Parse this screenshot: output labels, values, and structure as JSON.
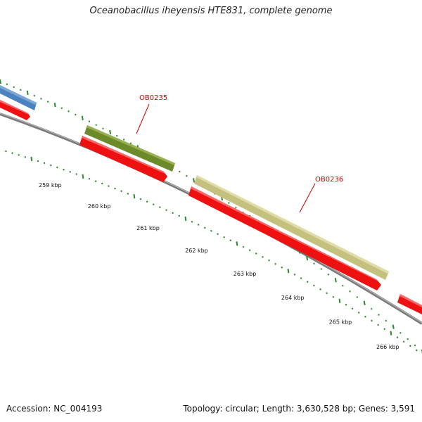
{
  "title": "Oceanobacillus iheyensis HTE831, complete genome",
  "footer": {
    "accession": "Accession: NC_004193",
    "info": "Topology: circular; Length: 3,630,528 bp; Genes: 3,591"
  },
  "ruler": [
    {
      "label": "259 kbp",
      "kbp": 259
    },
    {
      "label": "260 kbp",
      "kbp": 260
    },
    {
      "label": "261 kbp",
      "kbp": 261
    },
    {
      "label": "262 kbp",
      "kbp": 262
    },
    {
      "label": "263 kbp",
      "kbp": 263
    },
    {
      "label": "264 kbp",
      "kbp": 264
    },
    {
      "label": "265 kbp",
      "kbp": 265
    },
    {
      "label": "266 kbp",
      "kbp": 266
    }
  ],
  "gene_labels": [
    {
      "name": "OB0235",
      "color": "#cc0000"
    },
    {
      "name": "OB0236",
      "color": "#cc0000"
    }
  ],
  "colors": {
    "backbone": "#8a8a8a",
    "cds_forward": "#ee1111",
    "gene_blue": "#4a82c0",
    "gene_olive": "#6d8a2a",
    "gene_khaki": "#c4c07e",
    "tick": "#2a8a2a"
  }
}
